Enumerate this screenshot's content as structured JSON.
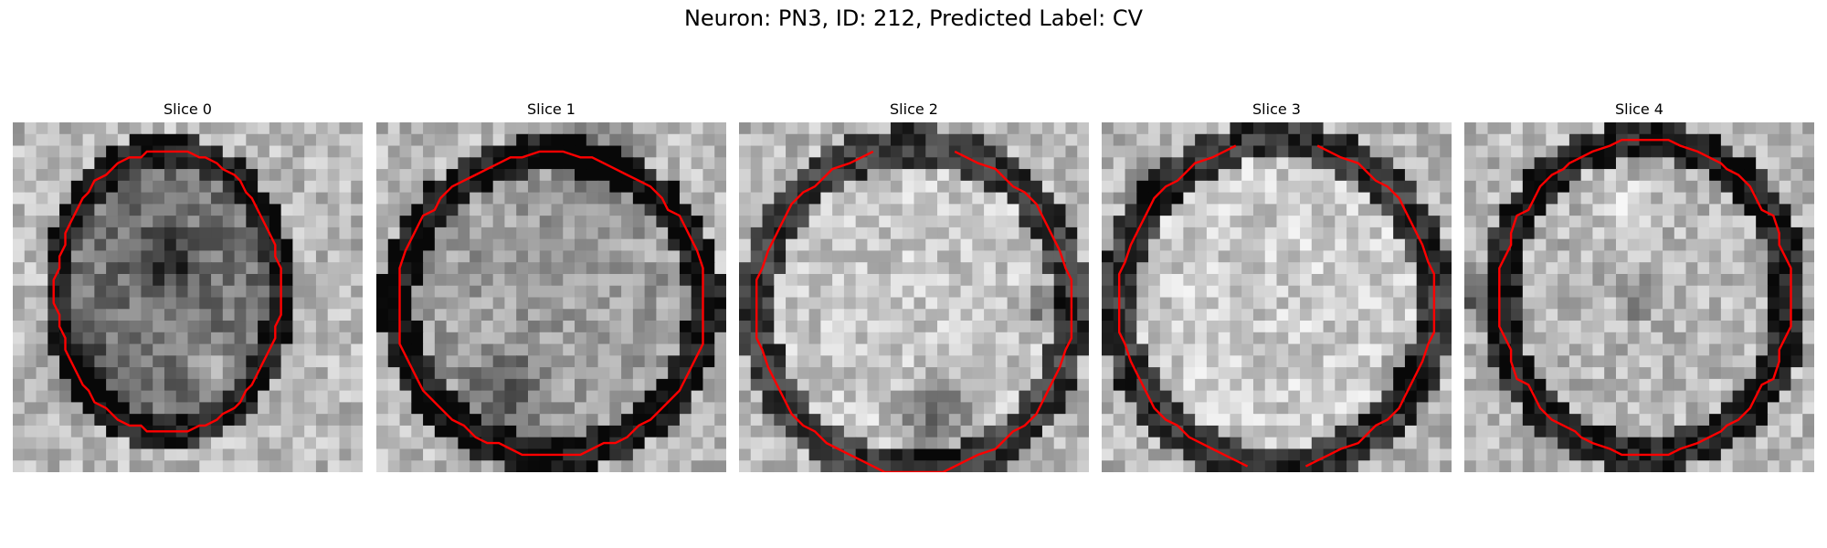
{
  "suptitle": "Neuron: PN3, ID: 212, Predicted Label: CV",
  "panels": [
    {
      "title": "Slice 0"
    },
    {
      "title": "Slice 1"
    },
    {
      "title": "Slice 2"
    },
    {
      "title": "Slice 3"
    },
    {
      "title": "Slice 4"
    }
  ],
  "colors": {
    "contour": "#ff0000",
    "colormap": "grayscale"
  }
}
